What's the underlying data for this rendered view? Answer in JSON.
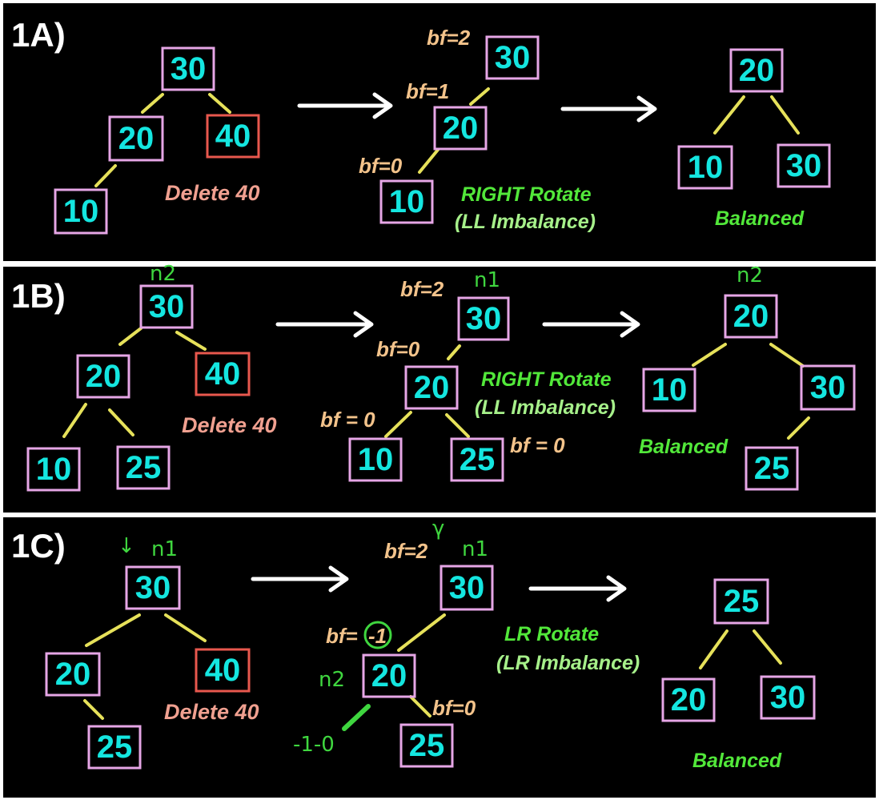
{
  "panels": [
    {
      "title": "1A)",
      "delete_label": "Delete 40",
      "rotate_label": "RIGHT Rotate",
      "imbalance_label": "(LL Imbalance)",
      "balanced_label": "Balanced",
      "bf_labels": [
        "bf=2",
        "bf=1",
        "bf=0"
      ],
      "hand_labels": [],
      "trees": [
        {
          "nodes": [
            "30",
            "20",
            "40",
            "10"
          ],
          "deleted": "40"
        },
        {
          "nodes": [
            "30",
            "20",
            "10"
          ]
        },
        {
          "nodes": [
            "20",
            "10",
            "30"
          ]
        }
      ]
    },
    {
      "title": "1B)",
      "delete_label": "Delete 40",
      "rotate_label": "RIGHT Rotate",
      "imbalance_label": "(LL Imbalance)",
      "balanced_label": "Balanced",
      "bf_labels": [
        "bf=2",
        "bf=0",
        "bf = 0",
        "bf = 0"
      ],
      "hand_labels": [
        "n2",
        "n1",
        "n2"
      ],
      "trees": [
        {
          "nodes": [
            "30",
            "20",
            "40",
            "10",
            "25"
          ],
          "deleted": "40"
        },
        {
          "nodes": [
            "30",
            "20",
            "10",
            "25"
          ]
        },
        {
          "nodes": [
            "20",
            "10",
            "30",
            "25"
          ]
        }
      ]
    },
    {
      "title": "1C)",
      "delete_label": "Delete 40",
      "rotate_label": "LR Rotate",
      "imbalance_label": "(LR Imbalance)",
      "balanced_label": "Balanced",
      "bf_labels": [
        "bf=2",
        "bf=",
        "-1",
        "bf=0"
      ],
      "hand_labels": [
        "↓",
        "n1",
        "n1",
        "n2",
        "-1-0"
      ],
      "trees": [
        {
          "nodes": [
            "30",
            "20",
            "40",
            "25"
          ],
          "deleted": "40"
        },
        {
          "nodes": [
            "30",
            "20",
            "25"
          ]
        },
        {
          "nodes": [
            "25",
            "20",
            "30"
          ]
        }
      ]
    }
  ],
  "colors": {
    "background": "#000000",
    "node_text": "#14e6e0",
    "node_border": "#e6a6e6",
    "deleted_border": "#e8584e",
    "edge": "#e6e15a",
    "arrow": "#ffffff",
    "bf_text": "#f3c38b",
    "rotate_text": "#52e83a",
    "delete_text": "#f0a090"
  }
}
